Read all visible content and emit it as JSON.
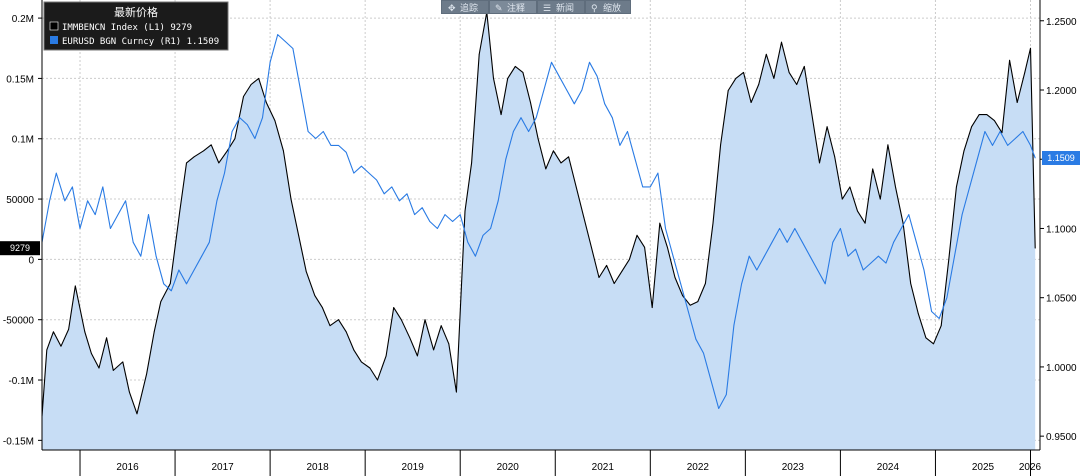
{
  "toolbar": {
    "buttons": [
      {
        "label": "追踪",
        "icon": "crosshair-icon"
      },
      {
        "label": "注释",
        "icon": "pencil-icon"
      },
      {
        "label": "新闻",
        "icon": "news-icon"
      },
      {
        "label": "缩放",
        "icon": "zoom-icon"
      }
    ]
  },
  "legend": {
    "title": "最新价格",
    "entries": [
      {
        "label": "IMMBENCN Index  (L1)     9279",
        "color": "#000000"
      },
      {
        "label": "EURUSD BGN Curncy  (R1) 1.1509",
        "color": "#2a7be4"
      }
    ]
  },
  "chart_data": {
    "type": "line",
    "x_axis": {
      "ticks": [
        "2016",
        "2017",
        "2018",
        "2019",
        "2020",
        "2021",
        "2022",
        "2023",
        "2024",
        "2025",
        "2026"
      ],
      "xlim": [
        2015.6,
        2026.1
      ]
    },
    "y_left": {
      "ticks": [
        {
          "value": -150000,
          "label": "-0.15M"
        },
        {
          "value": -100000,
          "label": "-0.1M"
        },
        {
          "value": -50000,
          "label": "-50000"
        },
        {
          "value": 0,
          "label": "0"
        },
        {
          "value": 50000,
          "label": "50000"
        },
        {
          "value": 100000,
          "label": "0.1M"
        },
        {
          "value": 150000,
          "label": "0.15M"
        },
        {
          "value": 200000,
          "label": "0.2M"
        }
      ],
      "ylim": [
        -158000,
        215000
      ],
      "last_value_label": "9279"
    },
    "y_right": {
      "ticks": [
        {
          "value": 0.95,
          "label": "0.9500"
        },
        {
          "value": 1.0,
          "label": "1.0000"
        },
        {
          "value": 1.05,
          "label": "1.0500"
        },
        {
          "value": 1.1,
          "label": "1.1000"
        },
        {
          "value": 1.15,
          "label": "1.1500"
        },
        {
          "value": 1.2,
          "label": "1.2000"
        },
        {
          "value": 1.25,
          "label": "1.2500"
        }
      ],
      "ylim": [
        0.94,
        1.265
      ],
      "last_value_label": "1.1509"
    },
    "grid": true,
    "series": [
      {
        "name": "IMMBENCN Index (L1)",
        "axis": "left",
        "color": "#000000",
        "fill": "#c7ddf5",
        "x": [
          2015.6,
          2015.65,
          2015.72,
          2015.8,
          2015.88,
          2015.95,
          2016.05,
          2016.12,
          2016.2,
          2016.28,
          2016.35,
          2016.45,
          2016.52,
          2016.6,
          2016.7,
          2016.78,
          2016.85,
          2016.95,
          2017.05,
          2017.12,
          2017.2,
          2017.3,
          2017.38,
          2017.46,
          2017.55,
          2017.63,
          2017.72,
          2017.8,
          2017.88,
          2017.96,
          2018.05,
          2018.14,
          2018.22,
          2018.3,
          2018.38,
          2018.47,
          2018.55,
          2018.63,
          2018.72,
          2018.8,
          2018.88,
          2018.96,
          2019.05,
          2019.13,
          2019.22,
          2019.3,
          2019.38,
          2019.47,
          2019.55,
          2019.63,
          2019.72,
          2019.8,
          2019.88,
          2019.96,
          2020.05,
          2020.12,
          2020.2,
          2020.28,
          2020.35,
          2020.43,
          2020.5,
          2020.58,
          2020.66,
          2020.74,
          2020.82,
          2020.9,
          2020.98,
          2021.06,
          2021.14,
          2021.22,
          2021.3,
          2021.38,
          2021.46,
          2021.54,
          2021.62,
          2021.7,
          2021.78,
          2021.86,
          2021.94,
          2022.02,
          2022.1,
          2022.18,
          2022.26,
          2022.34,
          2022.42,
          2022.5,
          2022.58,
          2022.66,
          2022.74,
          2022.82,
          2022.9,
          2022.98,
          2023.06,
          2023.14,
          2023.22,
          2023.3,
          2023.38,
          2023.46,
          2023.54,
          2023.62,
          2023.7,
          2023.78,
          2023.86,
          2023.94,
          2024.02,
          2024.1,
          2024.18,
          2024.26,
          2024.34,
          2024.42,
          2024.5,
          2024.58,
          2024.66,
          2024.74,
          2024.82,
          2024.9,
          2024.98,
          2025.06,
          2025.14,
          2025.22,
          2025.3,
          2025.38,
          2025.46,
          2025.54,
          2025.62,
          2025.7,
          2025.78,
          2025.86,
          2025.94,
          2026.0,
          2026.05
        ],
        "values": [
          -130000,
          -75000,
          -60000,
          -72000,
          -58000,
          -22000,
          -60000,
          -78000,
          -90000,
          -65000,
          -92000,
          -85000,
          -110000,
          -128000,
          -95000,
          -60000,
          -35000,
          -20000,
          40000,
          80000,
          85000,
          90000,
          95000,
          80000,
          90000,
          100000,
          135000,
          145000,
          150000,
          130000,
          115000,
          90000,
          50000,
          20000,
          -10000,
          -30000,
          -40000,
          -55000,
          -50000,
          -60000,
          -75000,
          -85000,
          -90000,
          -100000,
          -80000,
          -40000,
          -50000,
          -65000,
          -80000,
          -50000,
          -75000,
          -55000,
          -70000,
          -110000,
          40000,
          80000,
          170000,
          205000,
          150000,
          120000,
          150000,
          160000,
          155000,
          130000,
          100000,
          75000,
          90000,
          80000,
          85000,
          60000,
          35000,
          10000,
          -15000,
          -5000,
          -20000,
          -10000,
          0,
          20000,
          10000,
          -40000,
          30000,
          10000,
          -15000,
          -30000,
          -38000,
          -35000,
          -20000,
          30000,
          95000,
          140000,
          150000,
          155000,
          130000,
          145000,
          170000,
          150000,
          180000,
          155000,
          145000,
          160000,
          120000,
          80000,
          110000,
          85000,
          50000,
          60000,
          40000,
          30000,
          75000,
          50000,
          95000,
          60000,
          30000,
          -20000,
          -45000,
          -65000,
          -70000,
          -55000,
          0,
          60000,
          90000,
          110000,
          120000,
          120000,
          115000,
          105000,
          165000,
          130000,
          155000,
          175000,
          9279
        ]
      },
      {
        "name": "EURUSD BGN Curncy (R1)",
        "axis": "right",
        "color": "#2a7be4",
        "x": [
          2015.6,
          2015.68,
          2015.75,
          2015.84,
          2015.92,
          2016.0,
          2016.08,
          2016.16,
          2016.24,
          2016.32,
          2016.4,
          2016.48,
          2016.56,
          2016.64,
          2016.72,
          2016.8,
          2016.88,
          2016.96,
          2017.04,
          2017.12,
          2017.2,
          2017.28,
          2017.36,
          2017.44,
          2017.52,
          2017.6,
          2017.68,
          2017.76,
          2017.84,
          2017.92,
          2018.0,
          2018.08,
          2018.16,
          2018.24,
          2018.32,
          2018.4,
          2018.48,
          2018.56,
          2018.64,
          2018.72,
          2018.8,
          2018.88,
          2018.96,
          2019.04,
          2019.12,
          2019.2,
          2019.28,
          2019.36,
          2019.44,
          2019.52,
          2019.6,
          2019.68,
          2019.76,
          2019.84,
          2019.92,
          2020.0,
          2020.08,
          2020.16,
          2020.24,
          2020.32,
          2020.4,
          2020.48,
          2020.56,
          2020.64,
          2020.72,
          2020.8,
          2020.88,
          2020.96,
          2021.04,
          2021.12,
          2021.2,
          2021.28,
          2021.36,
          2021.44,
          2021.52,
          2021.6,
          2021.68,
          2021.76,
          2021.84,
          2021.92,
          2022.0,
          2022.08,
          2022.16,
          2022.24,
          2022.32,
          2022.4,
          2022.48,
          2022.56,
          2022.64,
          2022.72,
          2022.8,
          2022.88,
          2022.96,
          2023.04,
          2023.12,
          2023.2,
          2023.28,
          2023.36,
          2023.44,
          2023.52,
          2023.6,
          2023.68,
          2023.76,
          2023.84,
          2023.92,
          2024.0,
          2024.08,
          2024.16,
          2024.24,
          2024.32,
          2024.4,
          2024.48,
          2024.56,
          2024.64,
          2024.72,
          2024.8,
          2024.88,
          2024.96,
          2025.04,
          2025.12,
          2025.2,
          2025.28,
          2025.36,
          2025.44,
          2025.52,
          2025.6,
          2025.68,
          2025.76,
          2025.84,
          2025.92,
          2026.0,
          2026.05
        ],
        "values": [
          1.09,
          1.12,
          1.14,
          1.12,
          1.13,
          1.1,
          1.12,
          1.11,
          1.13,
          1.1,
          1.11,
          1.12,
          1.09,
          1.08,
          1.11,
          1.08,
          1.06,
          1.055,
          1.07,
          1.06,
          1.07,
          1.08,
          1.09,
          1.12,
          1.14,
          1.17,
          1.18,
          1.175,
          1.165,
          1.18,
          1.22,
          1.24,
          1.235,
          1.23,
          1.2,
          1.17,
          1.165,
          1.17,
          1.16,
          1.16,
          1.155,
          1.14,
          1.145,
          1.14,
          1.135,
          1.125,
          1.13,
          1.12,
          1.125,
          1.11,
          1.115,
          1.105,
          1.1,
          1.11,
          1.105,
          1.11,
          1.09,
          1.08,
          1.095,
          1.1,
          1.12,
          1.15,
          1.17,
          1.18,
          1.17,
          1.18,
          1.2,
          1.22,
          1.21,
          1.2,
          1.19,
          1.2,
          1.22,
          1.21,
          1.19,
          1.18,
          1.16,
          1.17,
          1.15,
          1.13,
          1.13,
          1.14,
          1.1,
          1.08,
          1.06,
          1.04,
          1.02,
          1.01,
          0.99,
          0.97,
          0.98,
          1.03,
          1.06,
          1.08,
          1.07,
          1.08,
          1.09,
          1.1,
          1.09,
          1.1,
          1.09,
          1.08,
          1.07,
          1.06,
          1.09,
          1.1,
          1.08,
          1.085,
          1.07,
          1.075,
          1.08,
          1.075,
          1.09,
          1.1,
          1.11,
          1.09,
          1.07,
          1.04,
          1.035,
          1.05,
          1.08,
          1.11,
          1.13,
          1.15,
          1.17,
          1.16,
          1.17,
          1.16,
          1.165,
          1.17,
          1.16,
          1.1509
        ]
      }
    ]
  }
}
